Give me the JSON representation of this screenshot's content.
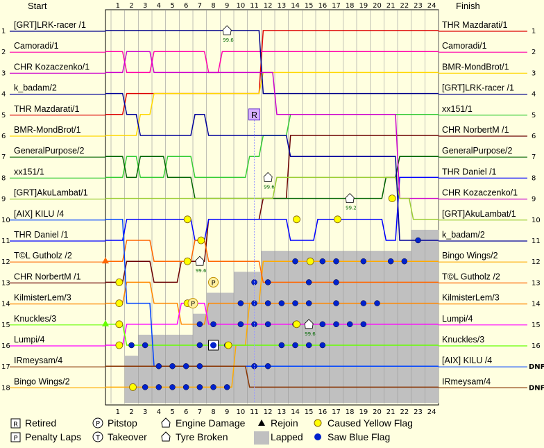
{
  "chart_data": {
    "type": "line",
    "title": "",
    "header_left": "Start",
    "header_right": "Finish",
    "laps": [
      "1",
      "2",
      "3",
      "4",
      "5",
      "6",
      "7",
      "8",
      "9",
      "10",
      "11",
      "12",
      "13",
      "14",
      "15",
      "16",
      "17",
      "18",
      "19",
      "20",
      "21",
      "22",
      "23",
      "24"
    ],
    "positions": [
      "1",
      "2",
      "3",
      "4",
      "5",
      "6",
      "7",
      "8",
      "9",
      "10",
      "11",
      "12",
      "13",
      "14",
      "15",
      "16",
      "17",
      "18"
    ],
    "right_axis_labels": [
      "1",
      "2",
      "3",
      "4",
      "5",
      "6",
      "7",
      "8",
      "9",
      "10",
      "11",
      "12",
      "13",
      "14",
      "15",
      "16",
      "DNF",
      "DNF"
    ],
    "start_order": [
      "[GRT]LRK-racer /1",
      "Camoradi/1",
      "CHR Kozaczenko/1",
      "k_badam/2",
      "THR Mazdarati/1",
      "BMR-MondBrot/1",
      "GeneralPurpose/2",
      "xx151/1",
      "[GRT]AkuLambat/1",
      "[AIX] KILU /4",
      "THR Daniel /1",
      "T©L Gutholz /2",
      "CHR NorbertM /1",
      "KilmisterLem/3",
      "Knuckles/3",
      "Lumpi/4",
      "IRmeysam/4",
      "Bingo Wings/2"
    ],
    "finish_order": [
      "THR Mazdarati/1",
      "Camoradi/1",
      "BMR-MondBrot/1",
      "[GRT]LRK-racer /1",
      "xx151/1",
      "CHR NorbertM /1",
      "GeneralPurpose/2",
      "THR Daniel /1",
      "CHR Kozaczenko/1",
      "[GRT]AkuLambat/1",
      "k_badam/2",
      "Bingo Wings/2",
      "T©L Gutholz /2",
      "KilmisterLem/3",
      "Lumpi/4",
      "Knuckles/3",
      "[AIX] KILU /4",
      "IRmeysam/4"
    ],
    "lapped_count": [
      0,
      2,
      3,
      3,
      3,
      3,
      4,
      5,
      5,
      6,
      6,
      7,
      7,
      7,
      7,
      7,
      7,
      7,
      7,
      7,
      7,
      7,
      8,
      8
    ],
    "series": [
      {
        "name": "THR Mazdarati/1",
        "color": "#dd0000",
        "positions": [
          5,
          4,
          4,
          4,
          4,
          4,
          4,
          4,
          4,
          4,
          4,
          1,
          1,
          1,
          1,
          1,
          1,
          1,
          1,
          1,
          1,
          1,
          1,
          1
        ]
      },
      {
        "name": "Camoradi/1",
        "color": "#ff00aa",
        "positions": [
          2,
          3,
          3,
          2,
          2,
          2,
          2,
          3,
          2,
          2,
          2,
          2,
          2,
          2,
          2,
          2,
          2,
          2,
          2,
          2,
          2,
          2,
          2,
          2
        ]
      },
      {
        "name": "BMR-MondBrot/1",
        "color": "#ffd700",
        "positions": [
          6,
          6,
          5,
          4,
          4,
          4,
          4,
          4,
          4,
          4,
          4,
          3,
          3,
          3,
          3,
          3,
          3,
          3,
          3,
          3,
          3,
          3,
          3,
          3
        ]
      },
      {
        "name": "[GRT]LRK-racer /1",
        "color": "#00008b",
        "positions": [
          1,
          1,
          1,
          1,
          1,
          1,
          1,
          1,
          1,
          1,
          1,
          4,
          4,
          4,
          4,
          4,
          4,
          4,
          4,
          4,
          4,
          4,
          4,
          4
        ]
      },
      {
        "name": "xx151/1",
        "color": "#33cc33",
        "positions": [
          8,
          7,
          8,
          8,
          7,
          7,
          8,
          8,
          8,
          8,
          7,
          6,
          6,
          5,
          5,
          5,
          5,
          5,
          5,
          5,
          5,
          5,
          5,
          5
        ]
      },
      {
        "name": "CHR NorbertM /1",
        "color": "#6b0000",
        "positions": [
          13,
          12,
          12,
          13,
          13,
          12,
          12,
          10,
          10,
          10,
          10,
          9,
          9,
          6,
          6,
          6,
          6,
          6,
          6,
          6,
          6,
          6,
          6,
          6
        ]
      },
      {
        "name": "GeneralPurpose/2",
        "color": "#006400",
        "positions": [
          7,
          8,
          7,
          7,
          8,
          8,
          9,
          9,
          9,
          9,
          9,
          9,
          9,
          9,
          9,
          9,
          9,
          9,
          9,
          9,
          8,
          7,
          7,
          7
        ]
      },
      {
        "name": "THR Daniel /1",
        "color": "#0000ff",
        "positions": [
          11,
          10,
          10,
          10,
          10,
          10,
          11,
          10,
          10,
          10,
          10,
          10,
          10,
          11,
          11,
          10,
          10,
          10,
          10,
          10,
          11,
          8,
          8,
          8
        ]
      },
      {
        "name": "CHR Kozaczenko/1",
        "color": "#cc00cc",
        "positions": [
          3,
          2,
          2,
          3,
          3,
          3,
          3,
          3,
          3,
          3,
          3,
          3,
          5,
          5,
          5,
          5,
          5,
          5,
          5,
          5,
          5,
          9,
          9,
          9
        ]
      },
      {
        "name": "[GRT]AkuLambat/1",
        "color": "#9acd32",
        "positions": [
          9,
          9,
          9,
          9,
          9,
          9,
          9,
          9,
          9,
          9,
          9,
          9,
          8,
          8,
          8,
          8,
          8,
          8,
          8,
          8,
          8,
          9,
          10,
          10
        ]
      },
      {
        "name": "k_badam/2",
        "color": "#000099",
        "positions": [
          4,
          5,
          6,
          6,
          6,
          6,
          5,
          6,
          6,
          6,
          6,
          6,
          6,
          7,
          7,
          7,
          7,
          7,
          7,
          7,
          7,
          11,
          11,
          11
        ]
      },
      {
        "name": "Bingo Wings/2",
        "color": "#ffaa00",
        "positions": [
          18,
          18,
          18,
          18,
          18,
          18,
          18,
          18,
          18,
          16,
          14,
          12,
          12,
          12,
          12,
          12,
          12,
          12,
          12,
          12,
          12,
          12,
          12,
          12
        ]
      },
      {
        "name": "T©L Gutholz /2",
        "color": "#ff6600",
        "positions": [
          12,
          11,
          11,
          12,
          12,
          12,
          11,
          12,
          12,
          12,
          12,
          13,
          13,
          13,
          13,
          13,
          13,
          13,
          13,
          13,
          13,
          13,
          13,
          13
        ]
      },
      {
        "name": "KilmisterLem/3",
        "color": "#ff8800",
        "positions": [
          14,
          13,
          13,
          14,
          14,
          15,
          15,
          14,
          14,
          14,
          14,
          14,
          14,
          14,
          14,
          14,
          14,
          14,
          14,
          14,
          14,
          14,
          14,
          14
        ]
      },
      {
        "name": "Lumpi/4",
        "color": "#ff00ff",
        "positions": [
          16,
          15,
          15,
          15,
          15,
          14,
          14,
          15,
          15,
          15,
          15,
          15,
          15,
          15,
          15,
          15,
          15,
          15,
          15,
          15,
          15,
          15,
          15,
          15
        ]
      },
      {
        "name": "Knuckles/3",
        "color": "#66ff00",
        "positions": [
          15,
          16,
          16,
          16,
          16,
          16,
          16,
          16,
          16,
          16,
          16,
          16,
          16,
          16,
          16,
          16,
          16,
          16,
          16,
          16,
          16,
          16,
          16,
          16
        ]
      },
      {
        "name": "[AIX] KILU /4",
        "color": "#0044ff",
        "positions": [
          10,
          14,
          14,
          17,
          17,
          17,
          17,
          17,
          17,
          17,
          17,
          17,
          17,
          17,
          17,
          17,
          17,
          17,
          17,
          17,
          17,
          17,
          17,
          17
        ]
      },
      {
        "name": "IRmeysam/4",
        "color": "#883300",
        "positions": [
          17,
          17,
          17,
          17,
          17,
          17,
          17,
          17,
          17,
          17,
          18,
          18,
          18,
          18,
          18,
          18,
          18,
          18,
          18,
          18,
          18,
          18,
          18,
          18
        ]
      }
    ],
    "events": {
      "blue_flags": [
        [
          2,
          16
        ],
        [
          3,
          16
        ],
        [
          5,
          17
        ],
        [
          6,
          17
        ],
        [
          7,
          17
        ],
        [
          4,
          17
        ],
        [
          3,
          18
        ],
        [
          4,
          18
        ],
        [
          5,
          18
        ],
        [
          6,
          18
        ],
        [
          7,
          18
        ],
        [
          8,
          18
        ],
        [
          9,
          18
        ],
        [
          11,
          17
        ],
        [
          12,
          17
        ],
        [
          13,
          16
        ],
        [
          14,
          16
        ],
        [
          15,
          16
        ],
        [
          16,
          16
        ],
        [
          10,
          14
        ],
        [
          11,
          14
        ],
        [
          12,
          14
        ],
        [
          13,
          14
        ],
        [
          14,
          14
        ],
        [
          15,
          14
        ],
        [
          17,
          14
        ],
        [
          19,
          14
        ],
        [
          20,
          14
        ],
        [
          10,
          15
        ],
        [
          11,
          15
        ],
        [
          12,
          15
        ],
        [
          14,
          15
        ],
        [
          16,
          15
        ],
        [
          17,
          15
        ],
        [
          18,
          15
        ],
        [
          19,
          15
        ],
        [
          11,
          13
        ],
        [
          12,
          13
        ],
        [
          15,
          13
        ],
        [
          17,
          13
        ],
        [
          14,
          12
        ],
        [
          16,
          12
        ],
        [
          17,
          12
        ],
        [
          19,
          12
        ],
        [
          21,
          12
        ],
        [
          22,
          12
        ],
        [
          23,
          11
        ],
        [
          7,
          15
        ],
        [
          8,
          15
        ],
        [
          7,
          16
        ],
        [
          8,
          16
        ],
        [
          9,
          16
        ]
      ],
      "yellow_flags": [
        [
          1,
          14
        ],
        [
          1,
          15
        ],
        [
          1,
          16
        ],
        [
          2,
          18
        ],
        [
          6,
          14
        ],
        [
          6,
          10
        ],
        [
          7,
          11
        ],
        [
          6,
          12
        ],
        [
          9,
          16
        ],
        [
          14,
          10
        ],
        [
          17,
          10
        ],
        [
          15,
          12
        ],
        [
          14,
          15
        ],
        [
          21,
          9
        ],
        [
          1,
          13
        ]
      ],
      "engine_damage": [
        [
          9,
          1
        ],
        [
          12,
          8
        ],
        [
          7,
          12
        ],
        [
          15,
          15
        ]
      ],
      "tyre_broken": [
        [
          18,
          9
        ]
      ],
      "retired": [
        [
          11,
          5
        ]
      ],
      "pitstop": [
        [
          8,
          13
        ],
        [
          6.5,
          14
        ]
      ],
      "takeover": [],
      "penalty": [
        [
          8,
          16
        ]
      ],
      "rejoin": [
        [
          1,
          12
        ],
        [
          1,
          15
        ]
      ]
    },
    "legend": [
      {
        "symbol": "R",
        "label": "Retired"
      },
      {
        "symbol": "P",
        "label": "Pitstop"
      },
      {
        "symbol": "engine",
        "label": "Engine Damage"
      },
      {
        "symbol": "rejoin",
        "label": "Rejoin"
      },
      {
        "symbol": "yellow",
        "label": "Caused Yellow Flag"
      },
      {
        "symbol": "P",
        "label": "Penalty Laps"
      },
      {
        "symbol": "T",
        "label": "Takeover"
      },
      {
        "symbol": "tyre",
        "label": "Tyre Broken"
      },
      {
        "symbol": "lapped",
        "label": "Lapped"
      },
      {
        "symbol": "blue",
        "label": "Saw Blue Flag"
      }
    ]
  }
}
